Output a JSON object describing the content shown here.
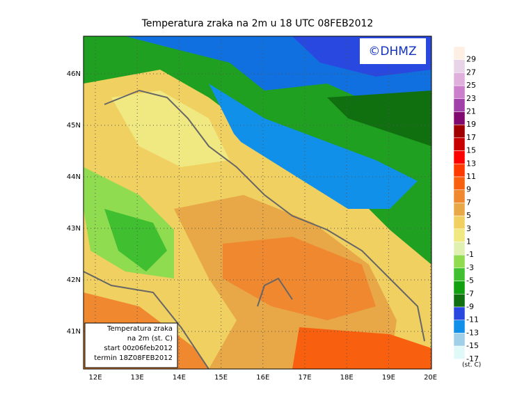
{
  "title": "Temperatura zraka na 2m u 18 UTC 08FEB2012",
  "copyright": "©DHMZ",
  "lat_labels": [
    "46N",
    "45N",
    "44N",
    "43N",
    "42N",
    "41N"
  ],
  "lon_labels": [
    "12E",
    "13E",
    "14E",
    "15E",
    "16E",
    "17E",
    "18E",
    "19E",
    "20E"
  ],
  "colorbar": {
    "levels": [
      29,
      27,
      25,
      23,
      21,
      19,
      17,
      15,
      13,
      11,
      9,
      7,
      5,
      3,
      1,
      -1,
      -3,
      -5,
      -7,
      -9,
      -11,
      -13,
      -15,
      -17
    ],
    "colors": [
      "#fdefe4",
      "#e8d4e8",
      "#e0b0dc",
      "#cc80cc",
      "#a040a8",
      "#800a70",
      "#a00000",
      "#c80000",
      "#ff0000",
      "#ff3a00",
      "#f86010",
      "#f08830",
      "#e8a848",
      "#f0d060",
      "#f0e880",
      "#e0f0b0",
      "#90dc50",
      "#40c030",
      "#10a010",
      "#107010",
      "#2848e0",
      "#1090e8",
      "#a0d0e8",
      "#e0f8f8",
      "#ffffff"
    ],
    "unit": "(st. C)"
  },
  "info_box": [
    "Temperatura zraka",
    "na 2m (st. C)",
    "start 00z06feb2012",
    "termin 18Z08FEB2012"
  ]
}
